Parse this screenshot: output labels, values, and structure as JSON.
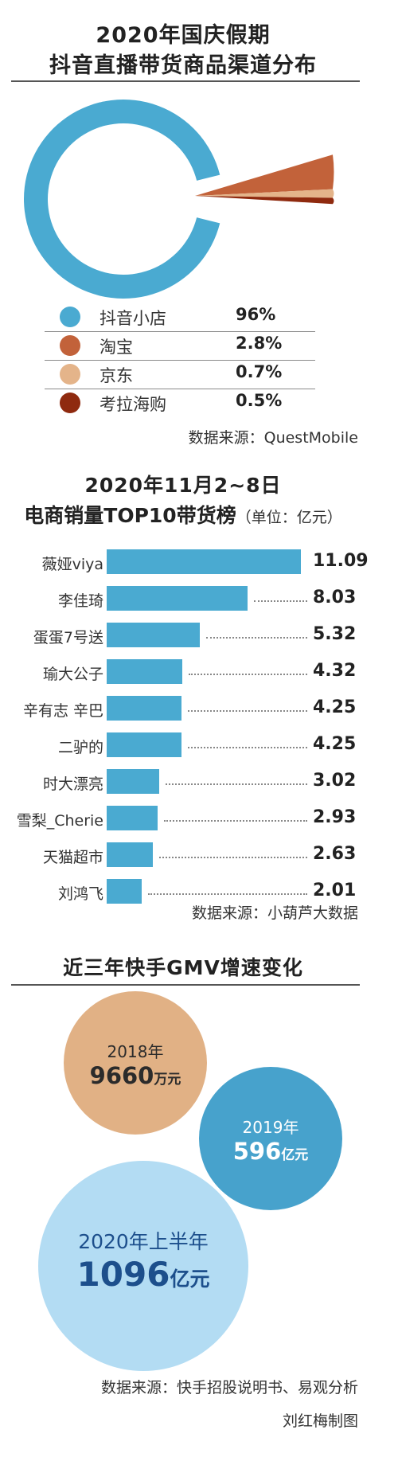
{
  "chart_data": [
    {
      "type": "pie",
      "title": "2020年国庆假期",
      "subtitle": "抖音直播带货商品渠道分布",
      "categories": [
        "抖音小店",
        "淘宝",
        "京东",
        "考拉海购"
      ],
      "values": [
        96,
        2.8,
        0.7,
        0.5
      ],
      "value_labels": [
        "96%",
        "2.8%",
        "0.7%",
        "0.5%"
      ],
      "colors": [
        "#4aaad1",
        "#c2623a",
        "#e4b48a",
        "#8f2a0f"
      ],
      "legend": "bottom",
      "source": "数据来源：QuestMobile"
    },
    {
      "type": "bar",
      "orientation": "horizontal",
      "title": "2020年11月2~8日",
      "subtitle": "电商销量TOP10带货榜",
      "unit": "（单位：亿元）",
      "categories": [
        "薇娅viya",
        "李佳琦",
        "蛋蛋7号送",
        "瑜大公子",
        "辛有志 辛巴",
        "二驴的",
        "时大漂亮",
        "雪梨_Cherie",
        "天猫超市",
        "刘鸿飞"
      ],
      "values": [
        11.09,
        8.03,
        5.32,
        4.32,
        4.25,
        4.25,
        3.02,
        2.93,
        2.63,
        2.01
      ],
      "value_labels": [
        "11.09",
        "8.03",
        "5.32",
        "4.32",
        "4.25",
        "4.25",
        "3.02",
        "2.93",
        "2.63",
        "2.01"
      ],
      "xlim": [
        0,
        11.09
      ],
      "color": "#4aaad1",
      "source": "数据来源：小葫芦大数据"
    },
    {
      "type": "bubble",
      "title": "近三年快手GMV增速变化",
      "items": [
        {
          "year": "2018年",
          "value": "9660",
          "unit": "万元",
          "value_yi": 0.966,
          "color": "#e1b185"
        },
        {
          "year": "2019年",
          "value": "596",
          "unit": "亿元",
          "value_yi": 596,
          "color": "#3d9dc9"
        },
        {
          "year": "2020年上半年",
          "value": "1096",
          "unit": "亿元",
          "value_yi": 1096,
          "color": "#b3dcf3"
        }
      ],
      "source": "数据来源：快手招股说明书、易观分析"
    }
  ],
  "credit": "刘红梅制图"
}
